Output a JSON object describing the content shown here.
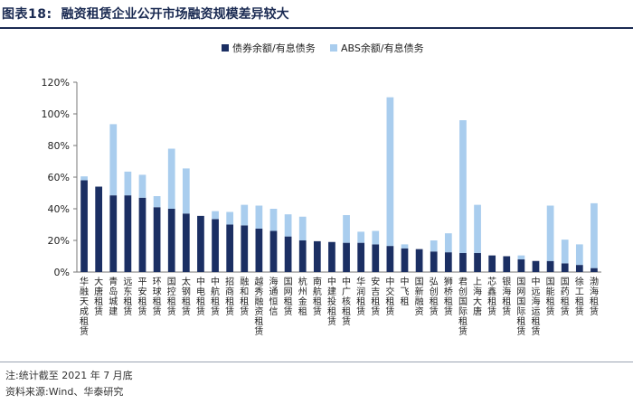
{
  "header": {
    "fig_label": "图表18:",
    "title": "融资租赁企业公开市场融资规模差异较大"
  },
  "footer": {
    "note": "注:统计截至 2021 年 7 月底",
    "source": "资料来源:Wind、华泰研究"
  },
  "colors": {
    "series1": "#1b2f63",
    "series2": "#a9cdee",
    "header_text": "#1a2a52"
  },
  "chart_data": {
    "type": "bar",
    "stacked": true,
    "ylim": [
      0,
      120
    ],
    "yticks": [
      0,
      20,
      40,
      60,
      80,
      100,
      120
    ],
    "ytick_labels": [
      "0%",
      "20%",
      "40%",
      "60%",
      "80%",
      "100%",
      "120%"
    ],
    "legend_position": "top-center",
    "grid": false,
    "categories": [
      "华融天成租赁",
      "大唐租赁",
      "青岛城建",
      "远东租赁",
      "平安租赁",
      "环球租赁",
      "国控租赁",
      "太钢租赁",
      "中电租赁",
      "中航租赁",
      "招商租赁",
      "融和租赁",
      "越秀融资租赁",
      "海通恒信",
      "国网租赁",
      "杭州金租",
      "南航租赁",
      "中建投租赁",
      "中广核租赁",
      "华润租赁",
      "安吉租赁",
      "中交租赁",
      "中飞租",
      "国新融资",
      "弘创租赁",
      "狮桥租赁",
      "君创国际租赁",
      "上海大唐",
      "芯鑫租赁",
      "银海租赁",
      "国网国际租赁",
      "中远海运租赁",
      "国能租赁",
      "国药租赁",
      "徐工租赁",
      "渤海租赁"
    ],
    "series": [
      {
        "name": "债券余额/有息债务",
        "values": [
          58,
          54,
          48.5,
          48.5,
          47,
          41,
          40,
          37,
          35.5,
          33.5,
          30,
          29.5,
          27.5,
          26,
          22.5,
          20,
          19.5,
          19,
          18.5,
          18.5,
          17.5,
          16.5,
          15,
          14.5,
          13,
          12.5,
          12,
          12,
          10.5,
          10,
          8,
          7,
          7,
          5.5,
          4.5,
          2.5
        ]
      },
      {
        "name": "ABS余额/有息债务",
        "values": [
          2.5,
          0,
          45,
          15,
          14.5,
          7,
          38,
          28.5,
          0,
          5,
          8,
          13,
          14.5,
          14,
          14,
          15,
          0,
          0,
          17.5,
          7,
          8.5,
          94,
          2.5,
          0,
          7,
          12,
          84,
          30.5,
          0,
          0,
          2.5,
          0,
          35,
          15,
          13,
          41
        ]
      }
    ]
  }
}
